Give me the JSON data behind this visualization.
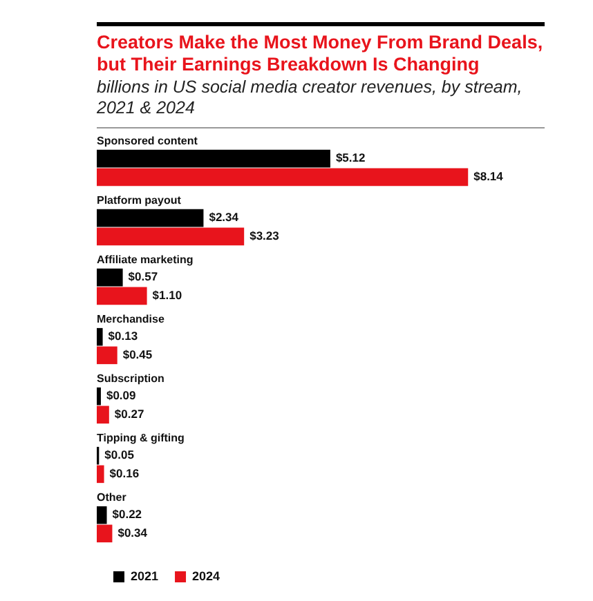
{
  "chart_data": {
    "type": "bar",
    "orientation": "horizontal",
    "title": "Creators Make the Most Money From Brand Deals, but Their Earnings Breakdown Is Changing",
    "subtitle": "billions in US social media creator revenues, by stream, 2021 & 2024",
    "categories": [
      "Sponsored content",
      "Platform payout",
      "Affiliate marketing",
      "Merchandise",
      "Subscription",
      "Tipping & gifting",
      "Other"
    ],
    "series": [
      {
        "name": "2021",
        "color": "#000000",
        "values": [
          5.12,
          2.34,
          0.57,
          0.13,
          0.09,
          0.05,
          0.22
        ],
        "value_labels": [
          "$5.12",
          "$2.34",
          "$0.57",
          "$0.13",
          "$0.09",
          "$0.05",
          "$0.22"
        ]
      },
      {
        "name": "2024",
        "color": "#e8141c",
        "values": [
          8.14,
          3.23,
          1.1,
          0.45,
          0.27,
          0.16,
          0.34
        ],
        "value_labels": [
          "$8.14",
          "$3.23",
          "$1.10",
          "$0.45",
          "$0.27",
          "$0.16",
          "$0.34"
        ]
      }
    ],
    "legend": "bottom left"
  }
}
